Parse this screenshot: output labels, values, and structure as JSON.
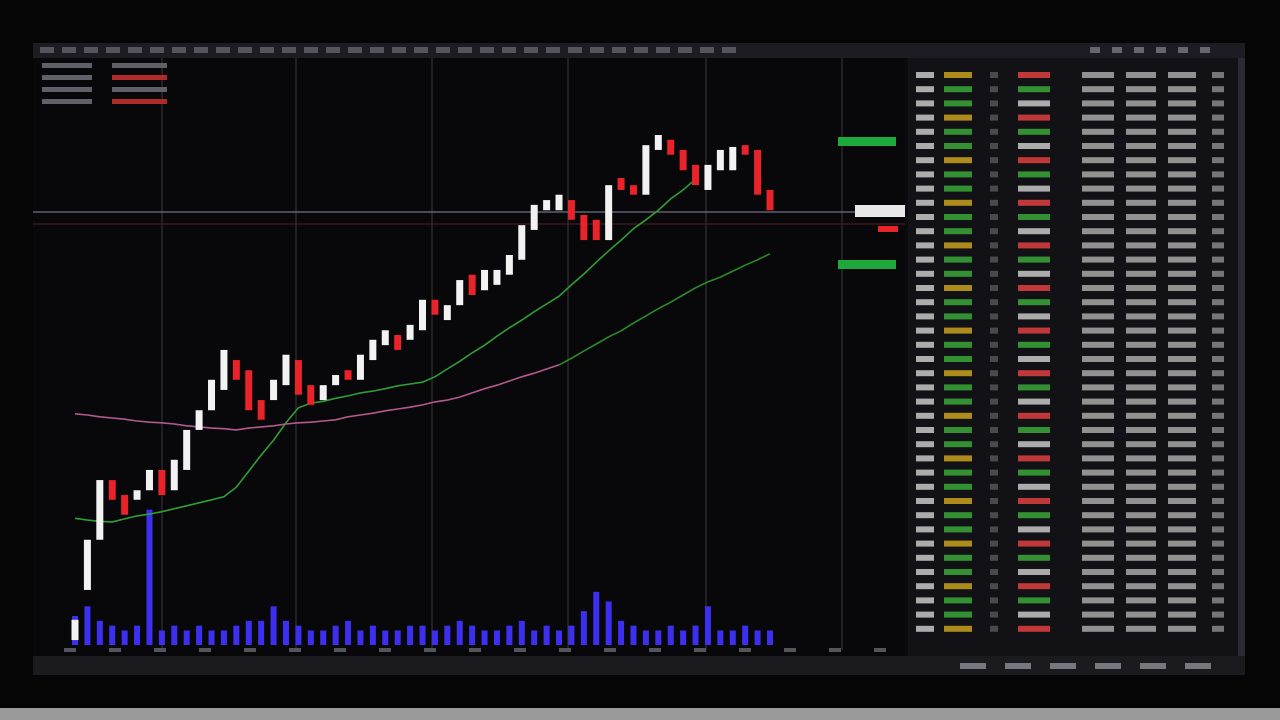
{
  "chart_data": {
    "type": "candlestick",
    "ylim": [
      0,
      100
    ],
    "up_color": "#f2f2f2",
    "down_color": "#e8232a",
    "open": [
      2.5,
      10.9,
      19.3,
      29.3,
      26.8,
      26.0,
      27.6,
      31.0,
      27.6,
      31.0,
      37.7,
      41.0,
      44.4,
      49.4,
      47.7,
      42.7,
      42.7,
      45.2,
      49.4,
      45.2,
      42.7,
      45.2,
      47.7,
      46.1,
      49.4,
      51.9,
      53.6,
      52.8,
      54.4,
      59.5,
      56.1,
      58.6,
      63.7,
      61.1,
      62.0,
      63.7,
      66.2,
      71.2,
      74.5,
      74.5,
      76.2,
      73.7,
      72.9,
      69.5,
      79.9,
      78.7,
      77.1,
      84.6,
      86.3,
      84.6,
      82.1,
      77.9,
      81.2,
      81.2,
      85.4,
      84.6,
      77.9
    ],
    "close": [
      5.9,
      19.3,
      29.3,
      26.0,
      23.5,
      27.6,
      31.0,
      26.8,
      32.7,
      37.7,
      41.0,
      46.1,
      51.1,
      46.1,
      41.0,
      39.4,
      46.1,
      50.3,
      43.6,
      41.9,
      45.2,
      46.9,
      46.1,
      50.3,
      52.8,
      54.4,
      51.1,
      55.3,
      59.5,
      57.0,
      58.6,
      62.8,
      60.3,
      64.5,
      64.5,
      67.0,
      72.0,
      75.4,
      76.2,
      77.1,
      72.9,
      69.5,
      69.5,
      78.7,
      77.9,
      77.1,
      85.4,
      87.1,
      83.8,
      81.2,
      78.7,
      82.1,
      84.6,
      85.1,
      83.8,
      77.1,
      74.5
    ],
    "volume": {
      "color": "#3d2ff0",
      "ylim": [
        0,
        30
      ],
      "values": [
        6,
        8,
        5,
        4,
        3,
        4,
        28,
        3,
        4,
        3,
        4,
        3,
        3,
        4,
        5,
        5,
        8,
        5,
        4,
        3,
        3,
        4,
        5,
        3,
        4,
        3,
        3,
        4,
        4,
        3,
        4,
        5,
        4,
        3,
        3,
        4,
        5,
        3,
        4,
        3,
        4,
        7,
        11,
        9,
        5,
        4,
        3,
        3,
        4,
        3,
        4,
        8,
        3,
        3,
        4,
        3,
        3
      ]
    },
    "series": [
      {
        "color": "#2f9e35",
        "values": [
          22.9,
          22.6,
          22.4,
          22.3,
          22.8,
          23.3,
          23.6,
          24.0,
          24.5,
          25.0,
          25.5,
          26.0,
          26.5,
          28.1,
          30.8,
          33.5,
          36.0,
          38.9,
          41.4,
          42.2,
          42.5,
          43.0,
          43.4,
          43.9,
          44.2,
          44.6,
          45.1,
          45.4,
          45.7,
          46.6,
          47.9,
          49.2,
          50.6,
          51.9,
          53.4,
          54.8,
          56.1,
          57.5,
          58.8,
          60.1,
          62.0,
          63.8,
          65.8,
          67.7,
          69.5,
          71.4,
          72.9,
          74.5,
          76.4,
          77.9,
          79.7,
          null,
          null,
          null,
          null,
          null,
          null
        ]
      },
      {
        "color": "#b35a8c",
        "values": [
          40.4,
          40.2,
          39.9,
          39.7,
          39.5,
          39.2,
          39.0,
          38.9,
          38.7,
          38.4,
          38.2,
          38.0,
          37.9,
          37.7,
          38.0,
          38.2,
          38.4,
          38.7,
          38.9,
          39.0,
          39.2,
          39.4,
          39.9,
          40.2,
          40.5,
          40.9,
          41.2,
          41.5,
          41.9,
          42.4,
          42.7,
          43.2,
          43.9,
          44.6,
          45.2,
          45.9,
          46.6,
          47.2,
          47.9,
          48.6,
          null,
          null,
          null,
          null,
          null,
          null,
          null,
          null,
          null,
          null,
          null,
          null,
          null,
          null,
          null,
          null,
          null
        ]
      },
      {
        "color": "#2b8a2b",
        "values": [
          null,
          null,
          null,
          null,
          null,
          null,
          null,
          null,
          null,
          null,
          null,
          null,
          null,
          null,
          null,
          null,
          null,
          null,
          null,
          null,
          null,
          null,
          null,
          null,
          null,
          null,
          null,
          null,
          null,
          null,
          null,
          null,
          null,
          null,
          null,
          null,
          null,
          null,
          null,
          48.6,
          49.7,
          50.9,
          52.1,
          53.3,
          54.3,
          55.6,
          56.8,
          58.0,
          59.1,
          60.3,
          61.5,
          62.5,
          63.3,
          64.3,
          65.3,
          66.2,
          67.2
        ]
      }
    ]
  }
}
